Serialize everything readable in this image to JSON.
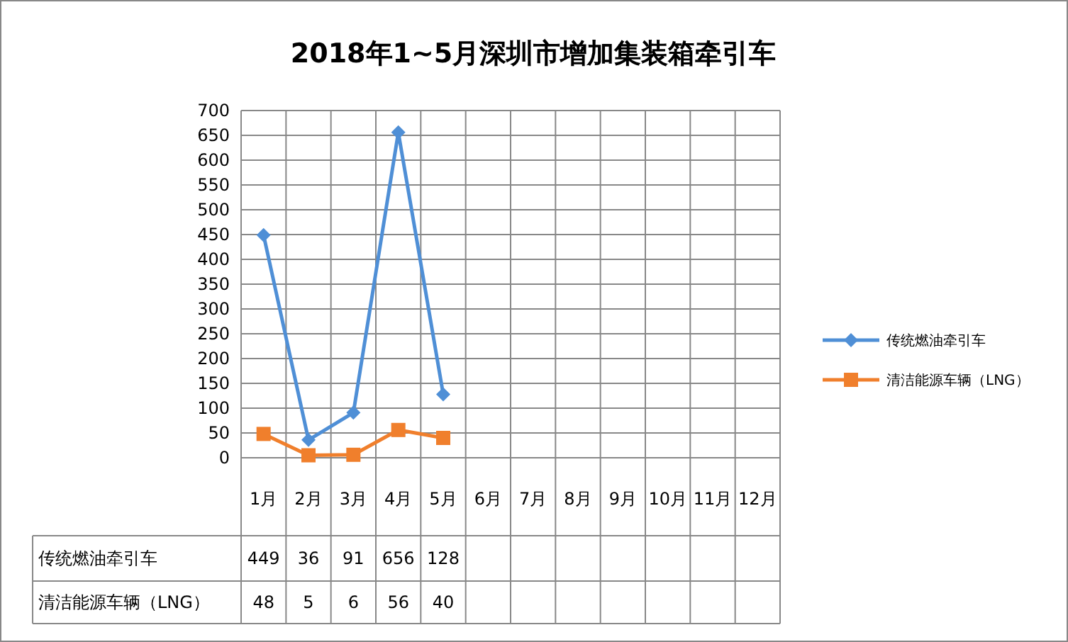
{
  "chart_data": {
    "type": "line",
    "title": "2018年1~5月深圳市增加集装箱牵引车",
    "categories": [
      "1月",
      "2月",
      "3月",
      "4月",
      "5月",
      "6月",
      "7月",
      "8月",
      "9月",
      "10月",
      "11月",
      "12月"
    ],
    "series": [
      {
        "name": "传统燃油牵引车",
        "color": "#4f8fd6",
        "marker": "diamond",
        "values": [
          449,
          36,
          91,
          656,
          128,
          null,
          null,
          null,
          null,
          null,
          null,
          null
        ]
      },
      {
        "name": "清洁能源车辆（LNG）",
        "color": "#f07f2c",
        "marker": "square",
        "values": [
          48,
          5,
          6,
          56,
          40,
          null,
          null,
          null,
          null,
          null,
          null,
          null
        ]
      }
    ],
    "ylim": [
      0,
      700
    ],
    "yticks": [
      0,
      50,
      100,
      150,
      200,
      250,
      300,
      350,
      400,
      450,
      500,
      550,
      600,
      650,
      700
    ],
    "grid": true,
    "legend": "right",
    "data_labels": true,
    "line_style": "solid"
  }
}
